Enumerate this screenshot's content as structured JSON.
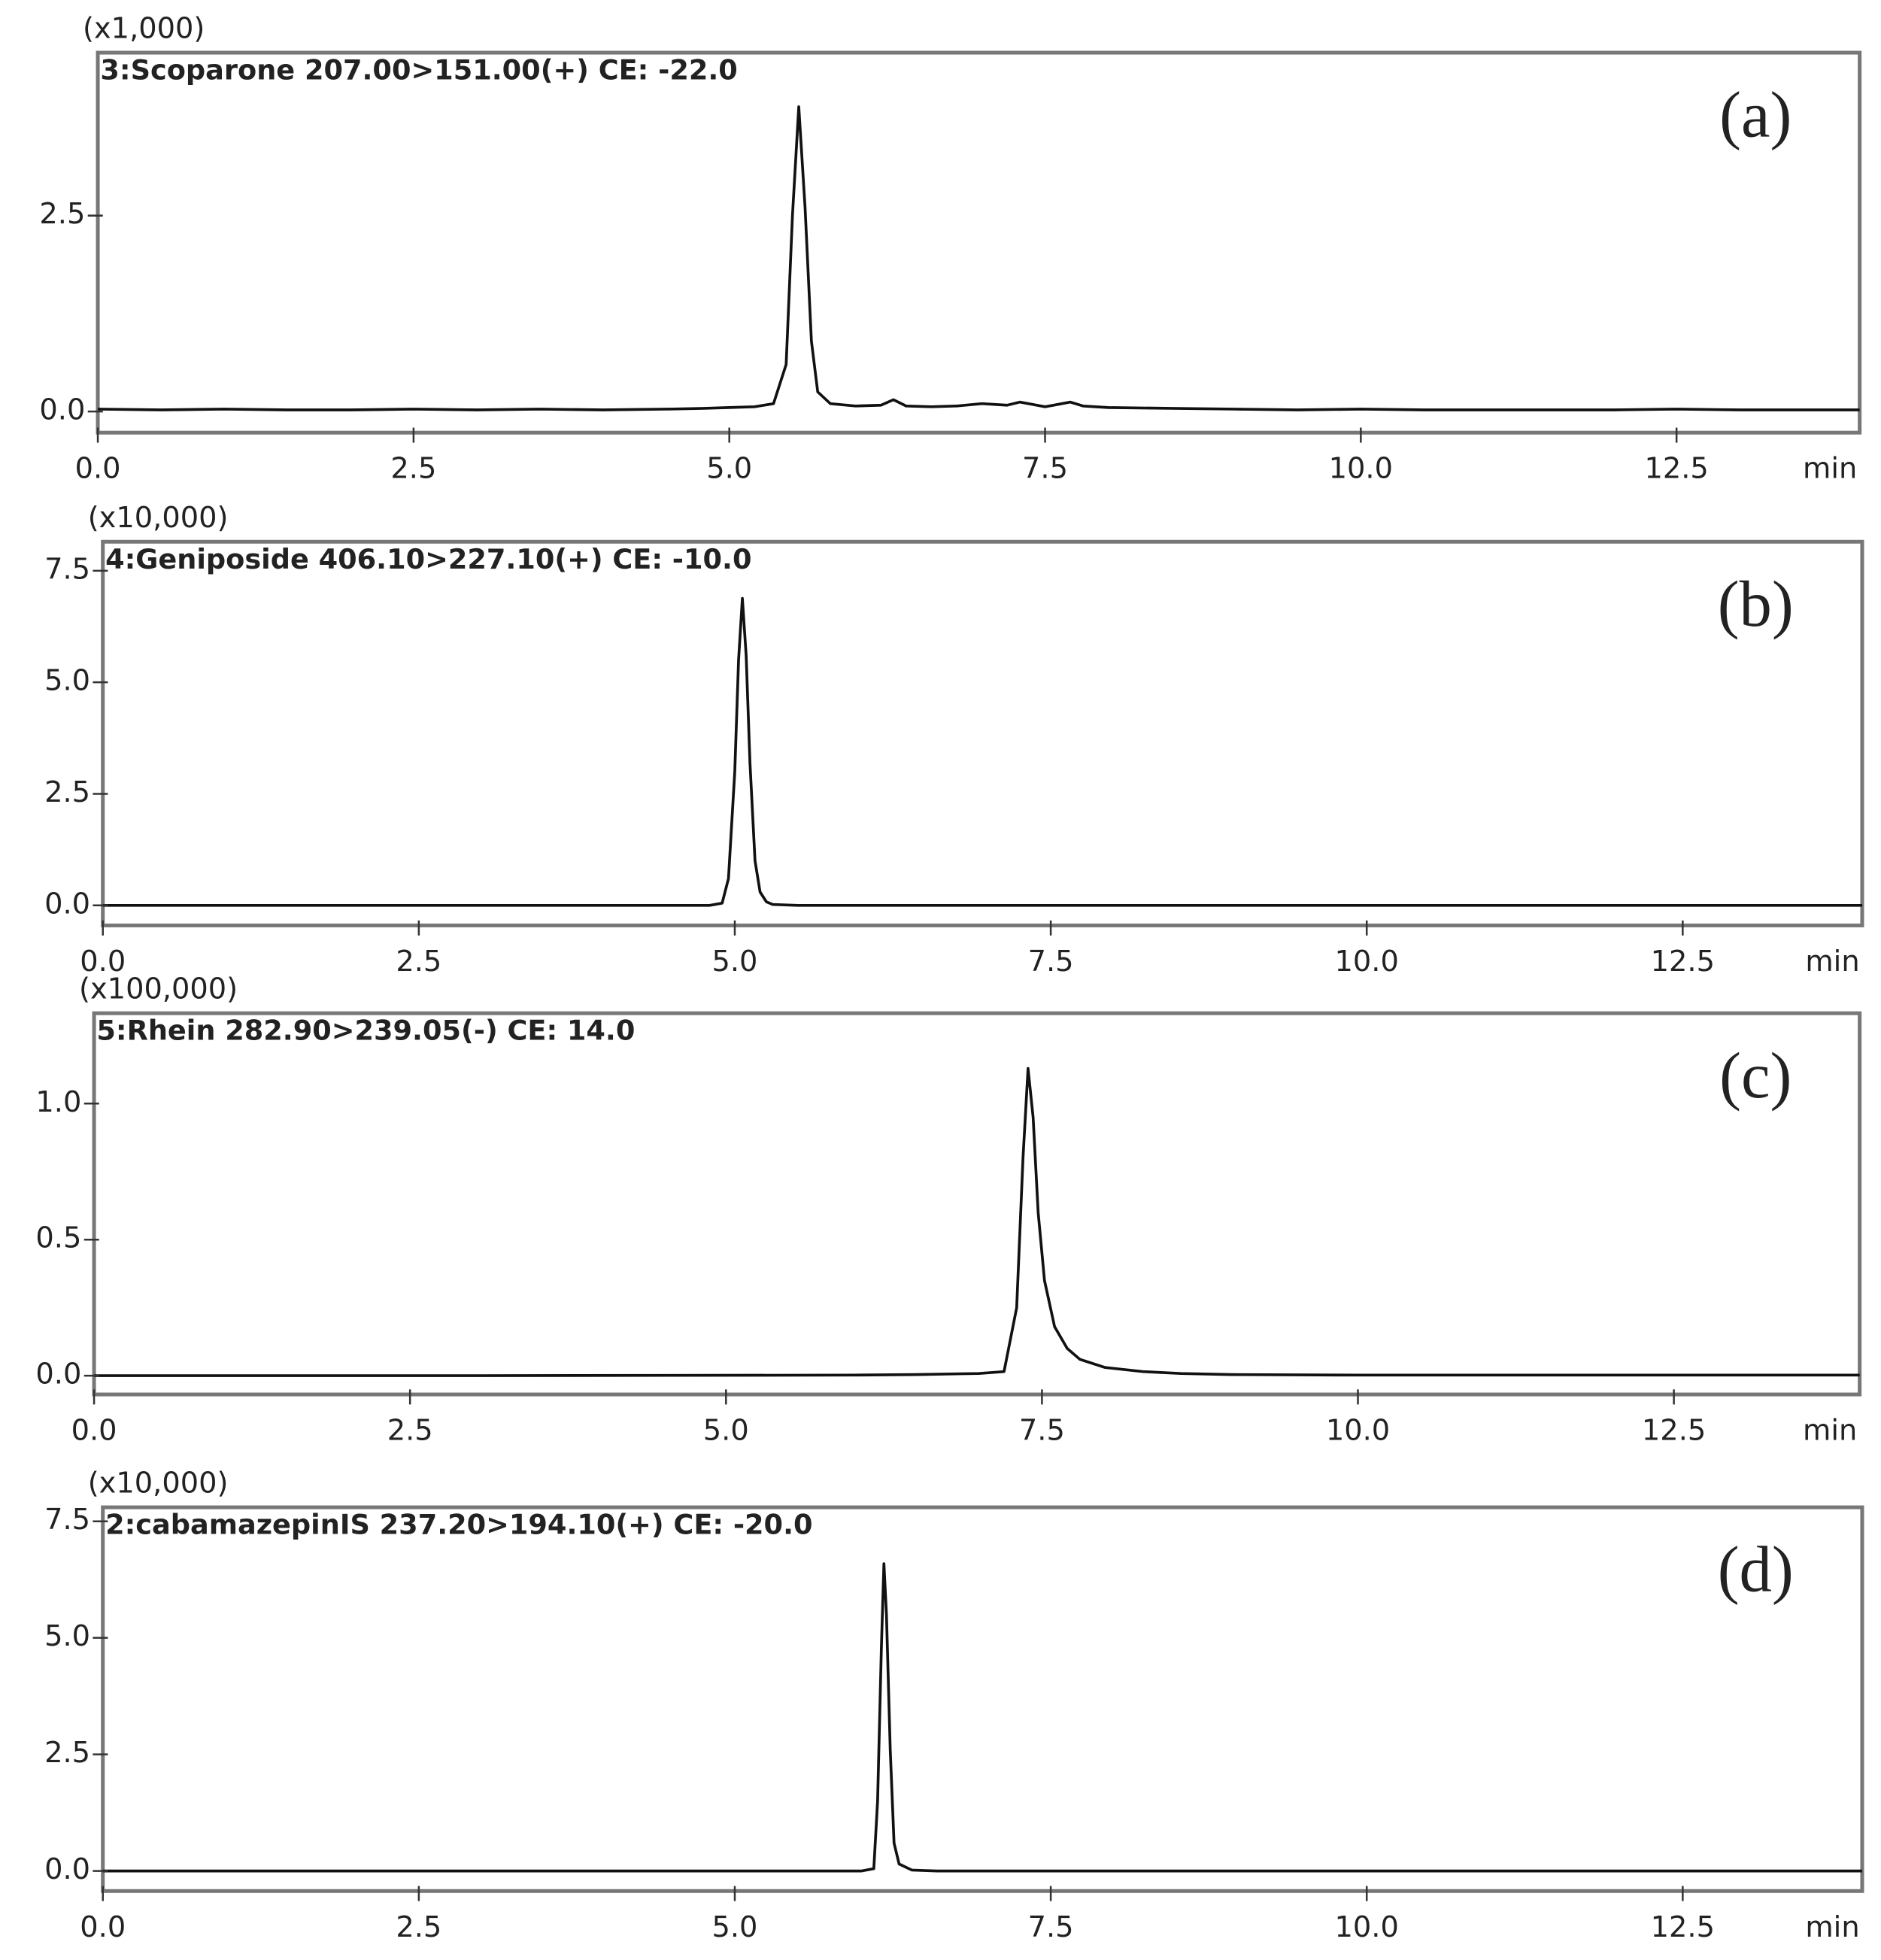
{
  "chart_data": [
    {
      "type": "line",
      "scale_label": "(x1,000)",
      "title": "3:Scoparone 207.00>151.00(+) CE: -22.0",
      "panel_label": "(a)",
      "x_unit": "min",
      "x": [
        0,
        0.5,
        1,
        1.5,
        2,
        2.5,
        3,
        3.5,
        4,
        4.5,
        4.8,
        5.0,
        5.2,
        5.35,
        5.45,
        5.5,
        5.55,
        5.6,
        5.65,
        5.7,
        5.8,
        6.0,
        6.2,
        6.3,
        6.4,
        6.6,
        6.8,
        7.0,
        7.2,
        7.3,
        7.5,
        7.7,
        7.8,
        8.0,
        8.5,
        9,
        9.5,
        10,
        10.5,
        11,
        11.5,
        12,
        12.5,
        13,
        13.5,
        13.95
      ],
      "values": [
        0.03,
        0.02,
        0.03,
        0.02,
        0.02,
        0.03,
        0.02,
        0.03,
        0.02,
        0.03,
        0.04,
        0.05,
        0.06,
        0.1,
        0.6,
        2.5,
        3.89,
        2.6,
        0.9,
        0.25,
        0.1,
        0.07,
        0.08,
        0.15,
        0.07,
        0.06,
        0.07,
        0.1,
        0.08,
        0.12,
        0.06,
        0.12,
        0.07,
        0.05,
        0.04,
        0.03,
        0.02,
        0.03,
        0.02,
        0.02,
        0.02,
        0.02,
        0.03,
        0.02,
        0.02,
        0.02
      ],
      "color": "#111111",
      "xlim": [
        0,
        13.95
      ],
      "ylim": [
        -0.27,
        4.58
      ],
      "xticks": [
        {
          "value": 0,
          "label": "0.0"
        },
        2.5,
        {
          "value": 5,
          "label": "5.0"
        },
        7.5,
        {
          "value": 10,
          "label": "10.0"
        },
        12.5
      ],
      "yticks": [
        {
          "value": 0,
          "label": "0.0"
        },
        2.5
      ]
    },
    {
      "type": "line",
      "scale_label": "(x10,000)",
      "title": "4:Geniposide 406.10>227.10(+) CE: -10.0",
      "panel_label": "(b)",
      "x_unit": "min",
      "x": [
        0,
        2,
        4,
        4.8,
        4.9,
        4.95,
        5.0,
        5.03,
        5.06,
        5.09,
        5.12,
        5.16,
        5.2,
        5.25,
        5.3,
        5.5,
        7,
        10,
        13.92
      ],
      "values": [
        0,
        0,
        0,
        0,
        0.05,
        0.6,
        3.0,
        5.5,
        6.88,
        5.6,
        3.2,
        1.0,
        0.3,
        0.08,
        0.02,
        0,
        0,
        0,
        0
      ],
      "color": "#111111",
      "xlim": [
        0,
        13.92
      ],
      "ylim": [
        -0.45,
        8.15
      ],
      "xticks": [
        {
          "value": 0,
          "label": "0.0"
        },
        2.5,
        {
          "value": 5,
          "label": "5.0"
        },
        7.5,
        {
          "value": 10,
          "label": "10.0"
        },
        12.5
      ],
      "yticks": [
        {
          "value": 0,
          "label": "0.0"
        },
        2.5,
        {
          "value": 5,
          "label": "5.0"
        },
        7.5
      ]
    },
    {
      "type": "line",
      "scale_label": "(x100,000)",
      "title": "5:Rhein 282.90>239.05(-) CE: 14.0",
      "panel_label": "(c)",
      "x_unit": "min",
      "x": [
        0,
        3,
        6,
        6.5,
        7.0,
        7.2,
        7.3,
        7.35,
        7.39,
        7.43,
        7.47,
        7.52,
        7.6,
        7.7,
        7.8,
        8.0,
        8.3,
        8.6,
        9,
        10,
        13.97
      ],
      "values": [
        0,
        0,
        0.002,
        0.004,
        0.008,
        0.015,
        0.25,
        0.8,
        1.129,
        0.95,
        0.6,
        0.35,
        0.18,
        0.1,
        0.06,
        0.03,
        0.015,
        0.008,
        0.004,
        0.002,
        0.002
      ],
      "color": "#111111",
      "xlim": [
        0,
        13.97
      ],
      "ylim": [
        -0.069,
        1.332
      ],
      "xticks": [
        {
          "value": 0,
          "label": "0.0"
        },
        2.5,
        {
          "value": 5,
          "label": "5.0"
        },
        7.5,
        {
          "value": 10,
          "label": "10.0"
        },
        12.5
      ],
      "yticks": [
        {
          "value": 0,
          "label": "0.0"
        },
        0.5,
        {
          "value": 1,
          "label": "1.0"
        }
      ]
    },
    {
      "type": "line",
      "scale_label": "(x10,000)",
      "title": "2:cabamazepinIS 237.20>194.10(+) CE: -20.0",
      "panel_label": "(d)",
      "x_unit": "min",
      "x": [
        0,
        3,
        5.5,
        6.0,
        6.1,
        6.13,
        6.16,
        6.18,
        6.2,
        6.23,
        6.26,
        6.3,
        6.4,
        6.6,
        8,
        11,
        13.92
      ],
      "values": [
        0,
        0,
        0,
        0,
        0.05,
        1.5,
        4.8,
        6.59,
        5.5,
        2.6,
        0.6,
        0.15,
        0.02,
        0,
        0,
        0,
        0
      ],
      "color": "#111111",
      "xlim": [
        0,
        13.92
      ],
      "ylim": [
        -0.43,
        7.8
      ],
      "xticks": [
        {
          "value": 0,
          "label": "0.0"
        },
        2.5,
        {
          "value": 5,
          "label": "5.0"
        },
        7.5,
        {
          "value": 10,
          "label": "10.0"
        },
        12.5
      ],
      "yticks": [
        {
          "value": 0,
          "label": "0.0"
        },
        2.5,
        {
          "value": 5,
          "label": "5.0"
        },
        7.5
      ]
    }
  ]
}
